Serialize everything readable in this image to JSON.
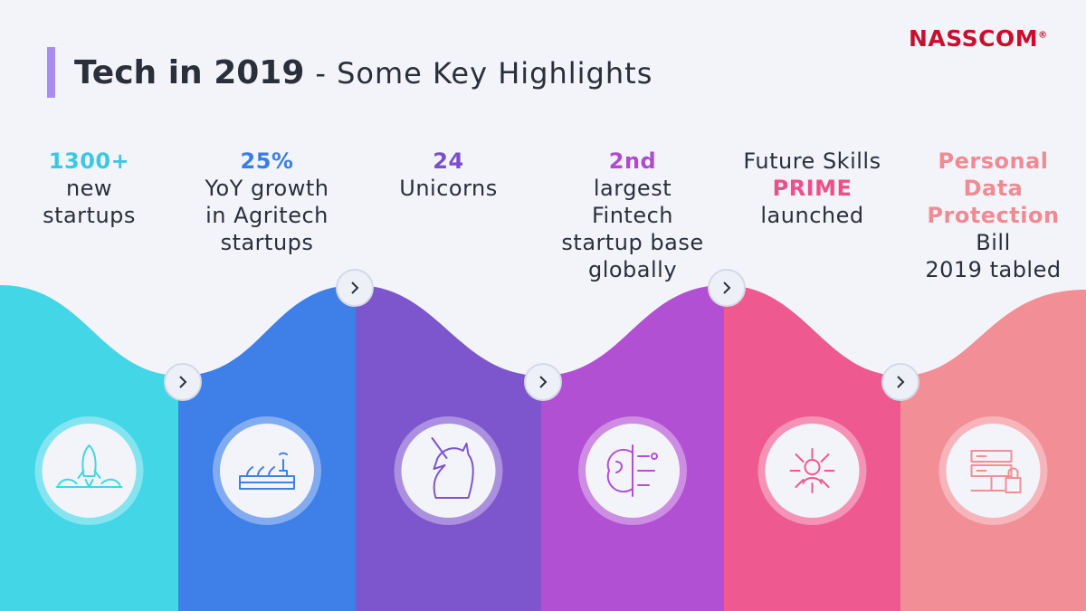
{
  "logo": {
    "text": "NASSCOM",
    "mark": "®",
    "color": "#c8102e"
  },
  "header": {
    "title": "Tech in 2019",
    "subtitle": "- Some Key Highlights",
    "bar_color": "#a78bf0"
  },
  "items": [
    {
      "color": "#42d6e6",
      "accent": "#3cc8df",
      "lines": [
        {
          "text": "1300+",
          "accent": true
        },
        {
          "text": "new"
        },
        {
          "text": "startups"
        }
      ]
    },
    {
      "color": "#3f7fe8",
      "accent": "#3b7de6",
      "lines": [
        {
          "text": "25%",
          "accent": true
        },
        {
          "text": "YoY growth"
        },
        {
          "text": "in Agritech"
        },
        {
          "text": "startups"
        }
      ]
    },
    {
      "color": "#7d55cc",
      "accent": "#7a4fc8",
      "lines": [
        {
          "text": "24",
          "accent": true
        },
        {
          "text": "Unicorns"
        }
      ]
    },
    {
      "color": "#b250d3",
      "accent": "#b04ad0",
      "lines": [
        {
          "text": "2nd",
          "accent": true
        },
        {
          "text": "largest"
        },
        {
          "text": "Fintech"
        },
        {
          "text": "startup base"
        },
        {
          "text": "globally"
        }
      ]
    },
    {
      "color": "#ee5a8f",
      "accent": "#ee4f8a",
      "lines": [
        {
          "text": "Future Skills"
        },
        {
          "text": "PRIME",
          "accent": true
        },
        {
          "text": "launched"
        }
      ]
    },
    {
      "color": "#f28e95",
      "accent": "#f08a93",
      "lines": [
        {
          "text": "Personal",
          "accent": true
        },
        {
          "text": "Data",
          "accent": true
        },
        {
          "text": "Protection",
          "accent": true
        },
        {
          "text": "Bill"
        },
        {
          "text": "2019 tabled"
        }
      ]
    }
  ]
}
